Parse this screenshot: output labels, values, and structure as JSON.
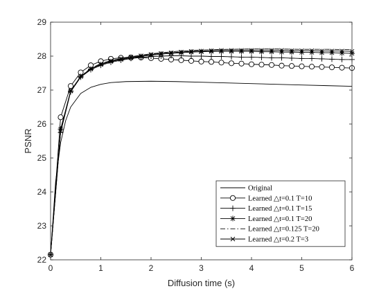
{
  "chart_data": {
    "type": "line",
    "title": "",
    "xlabel": "Diffusion time (s)",
    "ylabel": "PSNR",
    "xlim": [
      0,
      6
    ],
    "ylim": [
      22,
      29
    ],
    "xticks": [
      "0",
      "1",
      "2",
      "3",
      "4",
      "5",
      "6"
    ],
    "yticks": [
      "22",
      "23",
      "24",
      "25",
      "26",
      "27",
      "28",
      "29"
    ],
    "grid": false,
    "legend_position": "bottom-right",
    "series": [
      {
        "name": "Original",
        "line_style": "solid",
        "marker": "none",
        "x": [
          0,
          0.1,
          0.2,
          0.3,
          0.4,
          0.6,
          0.8,
          1.0,
          1.2,
          1.5,
          2.0,
          2.5,
          3.0,
          3.5,
          4.0,
          4.5,
          5.0,
          5.5,
          6.0
        ],
        "y": [
          22.15,
          24.3,
          25.45,
          26.1,
          26.5,
          26.9,
          27.08,
          27.17,
          27.22,
          27.25,
          27.26,
          27.25,
          27.23,
          27.21,
          27.19,
          27.17,
          27.15,
          27.13,
          27.11
        ]
      },
      {
        "name": "Learned △t=0.1 T=10",
        "line_style": "solid",
        "marker": "circle",
        "x": [
          0,
          0.2,
          0.4,
          0.6,
          0.8,
          1.0,
          1.2,
          1.4,
          1.6,
          1.8,
          2.0,
          2.2,
          2.4,
          2.6,
          2.8,
          3.0,
          3.2,
          3.4,
          3.6,
          3.8,
          4.0,
          4.2,
          4.4,
          4.6,
          4.8,
          5.0,
          5.2,
          5.4,
          5.6,
          5.8,
          6.0
        ],
        "y": [
          22.15,
          26.2,
          27.12,
          27.52,
          27.73,
          27.85,
          27.92,
          27.95,
          27.96,
          27.96,
          27.94,
          27.92,
          27.9,
          27.88,
          27.86,
          27.84,
          27.83,
          27.81,
          27.79,
          27.78,
          27.76,
          27.75,
          27.74,
          27.72,
          27.71,
          27.7,
          27.69,
          27.68,
          27.67,
          27.66,
          27.65
        ]
      },
      {
        "name": "Learned △t=0.1 T=15",
        "line_style": "solid",
        "marker": "plus",
        "x": [
          0,
          0.2,
          0.4,
          0.6,
          0.8,
          1.0,
          1.2,
          1.4,
          1.6,
          1.8,
          2.0,
          2.2,
          2.4,
          2.6,
          2.8,
          3.0,
          3.2,
          3.4,
          3.6,
          3.8,
          4.0,
          4.2,
          4.4,
          4.6,
          4.8,
          5.0,
          5.2,
          5.4,
          5.6,
          5.8,
          6.0
        ],
        "y": [
          22.15,
          25.75,
          26.95,
          27.38,
          27.6,
          27.73,
          27.82,
          27.88,
          27.93,
          27.96,
          27.99,
          28.0,
          28.01,
          28.01,
          28.0,
          28.0,
          27.99,
          27.99,
          27.98,
          27.97,
          27.97,
          27.96,
          27.95,
          27.95,
          27.94,
          27.93,
          27.93,
          27.92,
          27.91,
          27.9,
          27.9
        ]
      },
      {
        "name": "Learned △t=0.1 T=20",
        "line_style": "solid",
        "marker": "asterisk",
        "x": [
          0,
          0.2,
          0.4,
          0.6,
          0.8,
          1.0,
          1.2,
          1.4,
          1.6,
          1.8,
          2.0,
          2.2,
          2.4,
          2.6,
          2.8,
          3.0,
          3.2,
          3.4,
          3.6,
          3.8,
          4.0,
          4.2,
          4.4,
          4.6,
          4.8,
          5.0,
          5.2,
          5.4,
          5.6,
          5.8,
          6.0
        ],
        "y": [
          22.15,
          25.85,
          26.98,
          27.4,
          27.62,
          27.75,
          27.84,
          27.9,
          27.95,
          27.99,
          28.03,
          28.06,
          28.08,
          28.1,
          28.12,
          28.13,
          28.14,
          28.14,
          28.14,
          28.14,
          28.14,
          28.13,
          28.13,
          28.12,
          28.12,
          28.11,
          28.11,
          28.1,
          28.1,
          28.09,
          28.08
        ]
      },
      {
        "name": "Learned △t=0.125 T=20",
        "line_style": "dashdot",
        "marker": "none",
        "x": [
          0,
          0.2,
          0.4,
          0.6,
          0.8,
          1.0,
          1.2,
          1.5,
          2.0,
          2.5,
          3.0,
          3.5,
          4.0,
          4.5,
          5.0,
          5.5,
          6.0
        ],
        "y": [
          22.15,
          25.8,
          26.97,
          27.41,
          27.64,
          27.78,
          27.87,
          27.96,
          28.07,
          28.14,
          28.18,
          28.2,
          28.21,
          28.21,
          28.2,
          28.2,
          28.19
        ]
      },
      {
        "name": "Learned △t=0.2 T=3",
        "line_style": "solid",
        "marker": "x",
        "x": [
          0,
          0.2,
          0.4,
          0.6,
          0.8,
          1.0,
          1.2,
          1.4,
          1.6,
          1.8,
          2.0,
          2.2,
          2.4,
          2.6,
          2.8,
          3.0,
          3.2,
          3.4,
          3.6,
          3.8,
          4.0,
          4.2,
          4.4,
          4.6,
          4.8,
          5.0,
          5.2,
          5.4,
          5.6,
          5.8,
          6.0
        ],
        "y": [
          22.15,
          25.8,
          26.97,
          27.4,
          27.63,
          27.77,
          27.86,
          27.92,
          27.97,
          28.01,
          28.05,
          28.08,
          28.1,
          28.12,
          28.14,
          28.15,
          28.16,
          28.17,
          28.17,
          28.17,
          28.17,
          28.17,
          28.17,
          28.17,
          28.16,
          28.16,
          28.16,
          28.15,
          28.15,
          28.15,
          28.14
        ]
      }
    ]
  }
}
